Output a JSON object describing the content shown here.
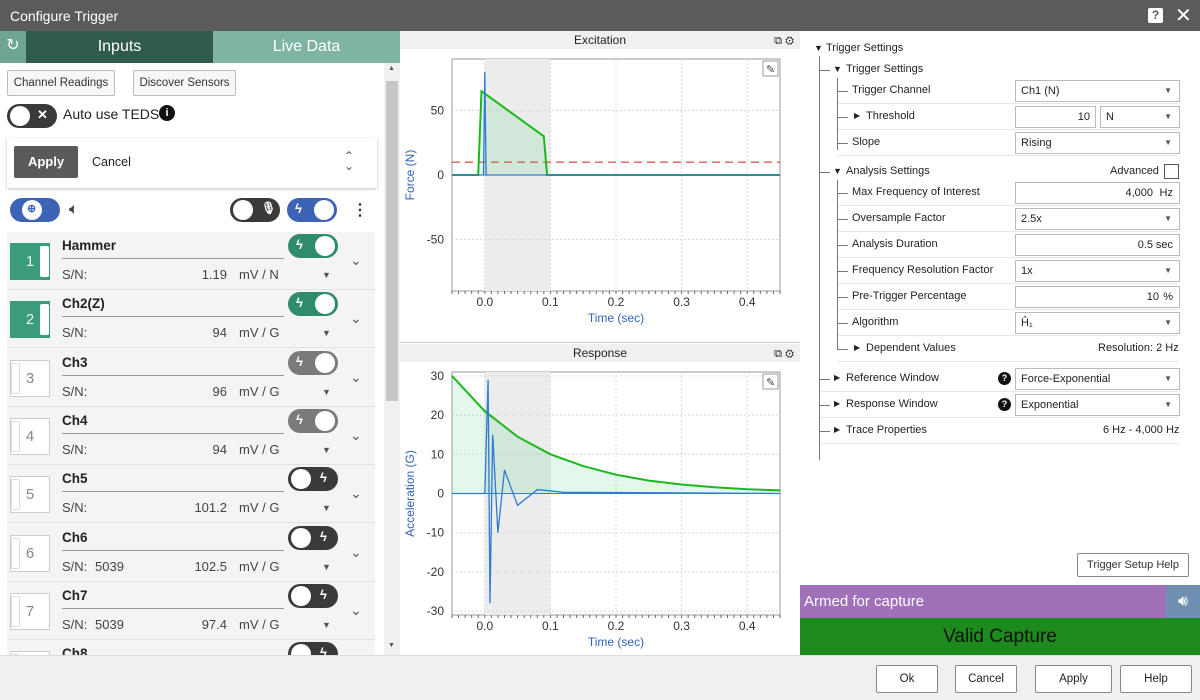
{
  "window": {
    "title": "Configure Trigger"
  },
  "tabs": [
    {
      "label": "Inputs"
    },
    {
      "label": "Live Data"
    }
  ],
  "left": {
    "channel_readings": "Channel Readings",
    "discover_sensors": "Discover Sensors",
    "auto_teds": "Auto use TEDS",
    "apply": "Apply",
    "cancel": "Cancel"
  },
  "channels": [
    {
      "num": "1",
      "name": "Hammer",
      "sn_label": "S/N:",
      "sn": "",
      "value": "1.19",
      "unit": "mV / N",
      "active": true,
      "trigger": "green"
    },
    {
      "num": "2",
      "name": "Ch2(Z)",
      "sn_label": "S/N:",
      "sn": "",
      "value": "94",
      "unit": "mV / G",
      "active": true,
      "trigger": "green"
    },
    {
      "num": "3",
      "name": "Ch3",
      "sn_label": "S/N:",
      "sn": "",
      "value": "96",
      "unit": "mV / G",
      "active": false,
      "trigger": "gray"
    },
    {
      "num": "4",
      "name": "Ch4",
      "sn_label": "S/N:",
      "sn": "",
      "value": "94",
      "unit": "mV / G",
      "active": false,
      "trigger": "gray"
    },
    {
      "num": "5",
      "name": "Ch5",
      "sn_label": "S/N:",
      "sn": "",
      "value": "101.2",
      "unit": "mV / G",
      "active": false,
      "trigger": "dark"
    },
    {
      "num": "6",
      "name": "Ch6",
      "sn_label": "S/N:",
      "sn": "5039",
      "value": "102.5",
      "unit": "mV / G",
      "active": false,
      "trigger": "dark"
    },
    {
      "num": "7",
      "name": "Ch7",
      "sn_label": "S/N:",
      "sn": "5039",
      "value": "97.4",
      "unit": "mV / G",
      "active": false,
      "trigger": "dark"
    },
    {
      "num": "8",
      "name": "Ch8",
      "sn_label": "",
      "sn": "",
      "value": "",
      "unit": "",
      "active": false,
      "trigger": "dark"
    }
  ],
  "chart_data": [
    {
      "type": "line",
      "title": "Excitation",
      "xlabel": "Time (sec)",
      "ylabel": "Force (N)",
      "xlim": [
        -0.05,
        0.45
      ],
      "ylim": [
        -90,
        90
      ],
      "xticks": [
        "0.0",
        "0.1",
        "0.2",
        "0.3",
        "0.4"
      ],
      "yticks": [
        "50",
        "0",
        "-50"
      ],
      "threshold": 10,
      "series": [
        {
          "color": "#1db81d",
          "x": [
            -0.05,
            -0.01,
            -0.005,
            0.09,
            0.095,
            0.45
          ],
          "values": [
            0,
            0,
            65,
            30,
            0,
            0
          ]
        },
        {
          "color": "#2f7ad6",
          "x": [
            -0.05,
            -0.002,
            0.0,
            0.002,
            0.45
          ],
          "values": [
            0,
            0,
            80,
            0,
            0
          ]
        }
      ]
    },
    {
      "type": "line",
      "title": "Response",
      "xlabel": "Time (sec)",
      "ylabel": "Acceleration (G)",
      "xlim": [
        -0.05,
        0.45
      ],
      "ylim": [
        -31,
        31
      ],
      "xticks": [
        "0.0",
        "0.1",
        "0.2",
        "0.3",
        "0.4"
      ],
      "yticks": [
        "30",
        "20",
        "10",
        "0",
        "-10",
        "-20",
        "-30"
      ],
      "series": [
        {
          "color": "#1db81d",
          "x": [
            -0.05,
            0.0,
            0.05,
            0.1,
            0.15,
            0.2,
            0.25,
            0.3,
            0.35,
            0.4,
            0.45
          ],
          "values": [
            30,
            21,
            14.5,
            10,
            7,
            4.8,
            3.3,
            2.3,
            1.6,
            1.1,
            0.8
          ]
        },
        {
          "color": "#2f7ad6",
          "x": [
            -0.05,
            0.0,
            0.005,
            0.008,
            0.012,
            0.02,
            0.03,
            0.05,
            0.08,
            0.12,
            0.45
          ],
          "values": [
            0,
            0,
            29,
            -28,
            15,
            -10,
            6,
            -3,
            1,
            0.3,
            0
          ]
        }
      ]
    }
  ],
  "trigger": {
    "section": "Trigger Settings",
    "sub": "Trigger Settings",
    "channel_label": "Trigger Channel",
    "channel_value": "Ch1 (N)",
    "threshold_label": "Threshold",
    "threshold_value": "10",
    "threshold_unit": "N",
    "slope_label": "Slope",
    "slope_value": "Rising",
    "analysis_label": "Analysis Settings",
    "advanced_label": "Advanced",
    "maxfreq_label": "Max Frequency of Interest",
    "maxfreq_value": "4,000",
    "maxfreq_unit": "Hz",
    "oversample_label": "Oversample Factor",
    "oversample_value": "2.5x",
    "duration_label": "Analysis Duration",
    "duration_value": "0.5",
    "duration_unit": "sec",
    "freqres_label": "Frequency Resolution Factor",
    "freqres_value": "1x",
    "pretrig_label": "Pre-Trigger Percentage",
    "pretrig_value": "10",
    "pretrig_unit": "%",
    "algorithm_label": "Algorithm",
    "algorithm_value": "Ĥ₁",
    "dependent_label": "Dependent Values",
    "resolution": "Resolution: 2 Hz",
    "refwin_label": "Reference Window",
    "refwin_value": "Force-Exponential",
    "respwin_label": "Response Window",
    "respwin_value": "Exponential",
    "trace_label": "Trace Properties",
    "trace_value": "6 Hz - 4,000 Hz",
    "help_button": "Trigger Setup Help"
  },
  "status": {
    "armed": "Armed for capture",
    "valid": "Valid Capture"
  },
  "footer": {
    "ok": "Ok",
    "cancel": "Cancel",
    "apply": "Apply",
    "help": "Help"
  }
}
